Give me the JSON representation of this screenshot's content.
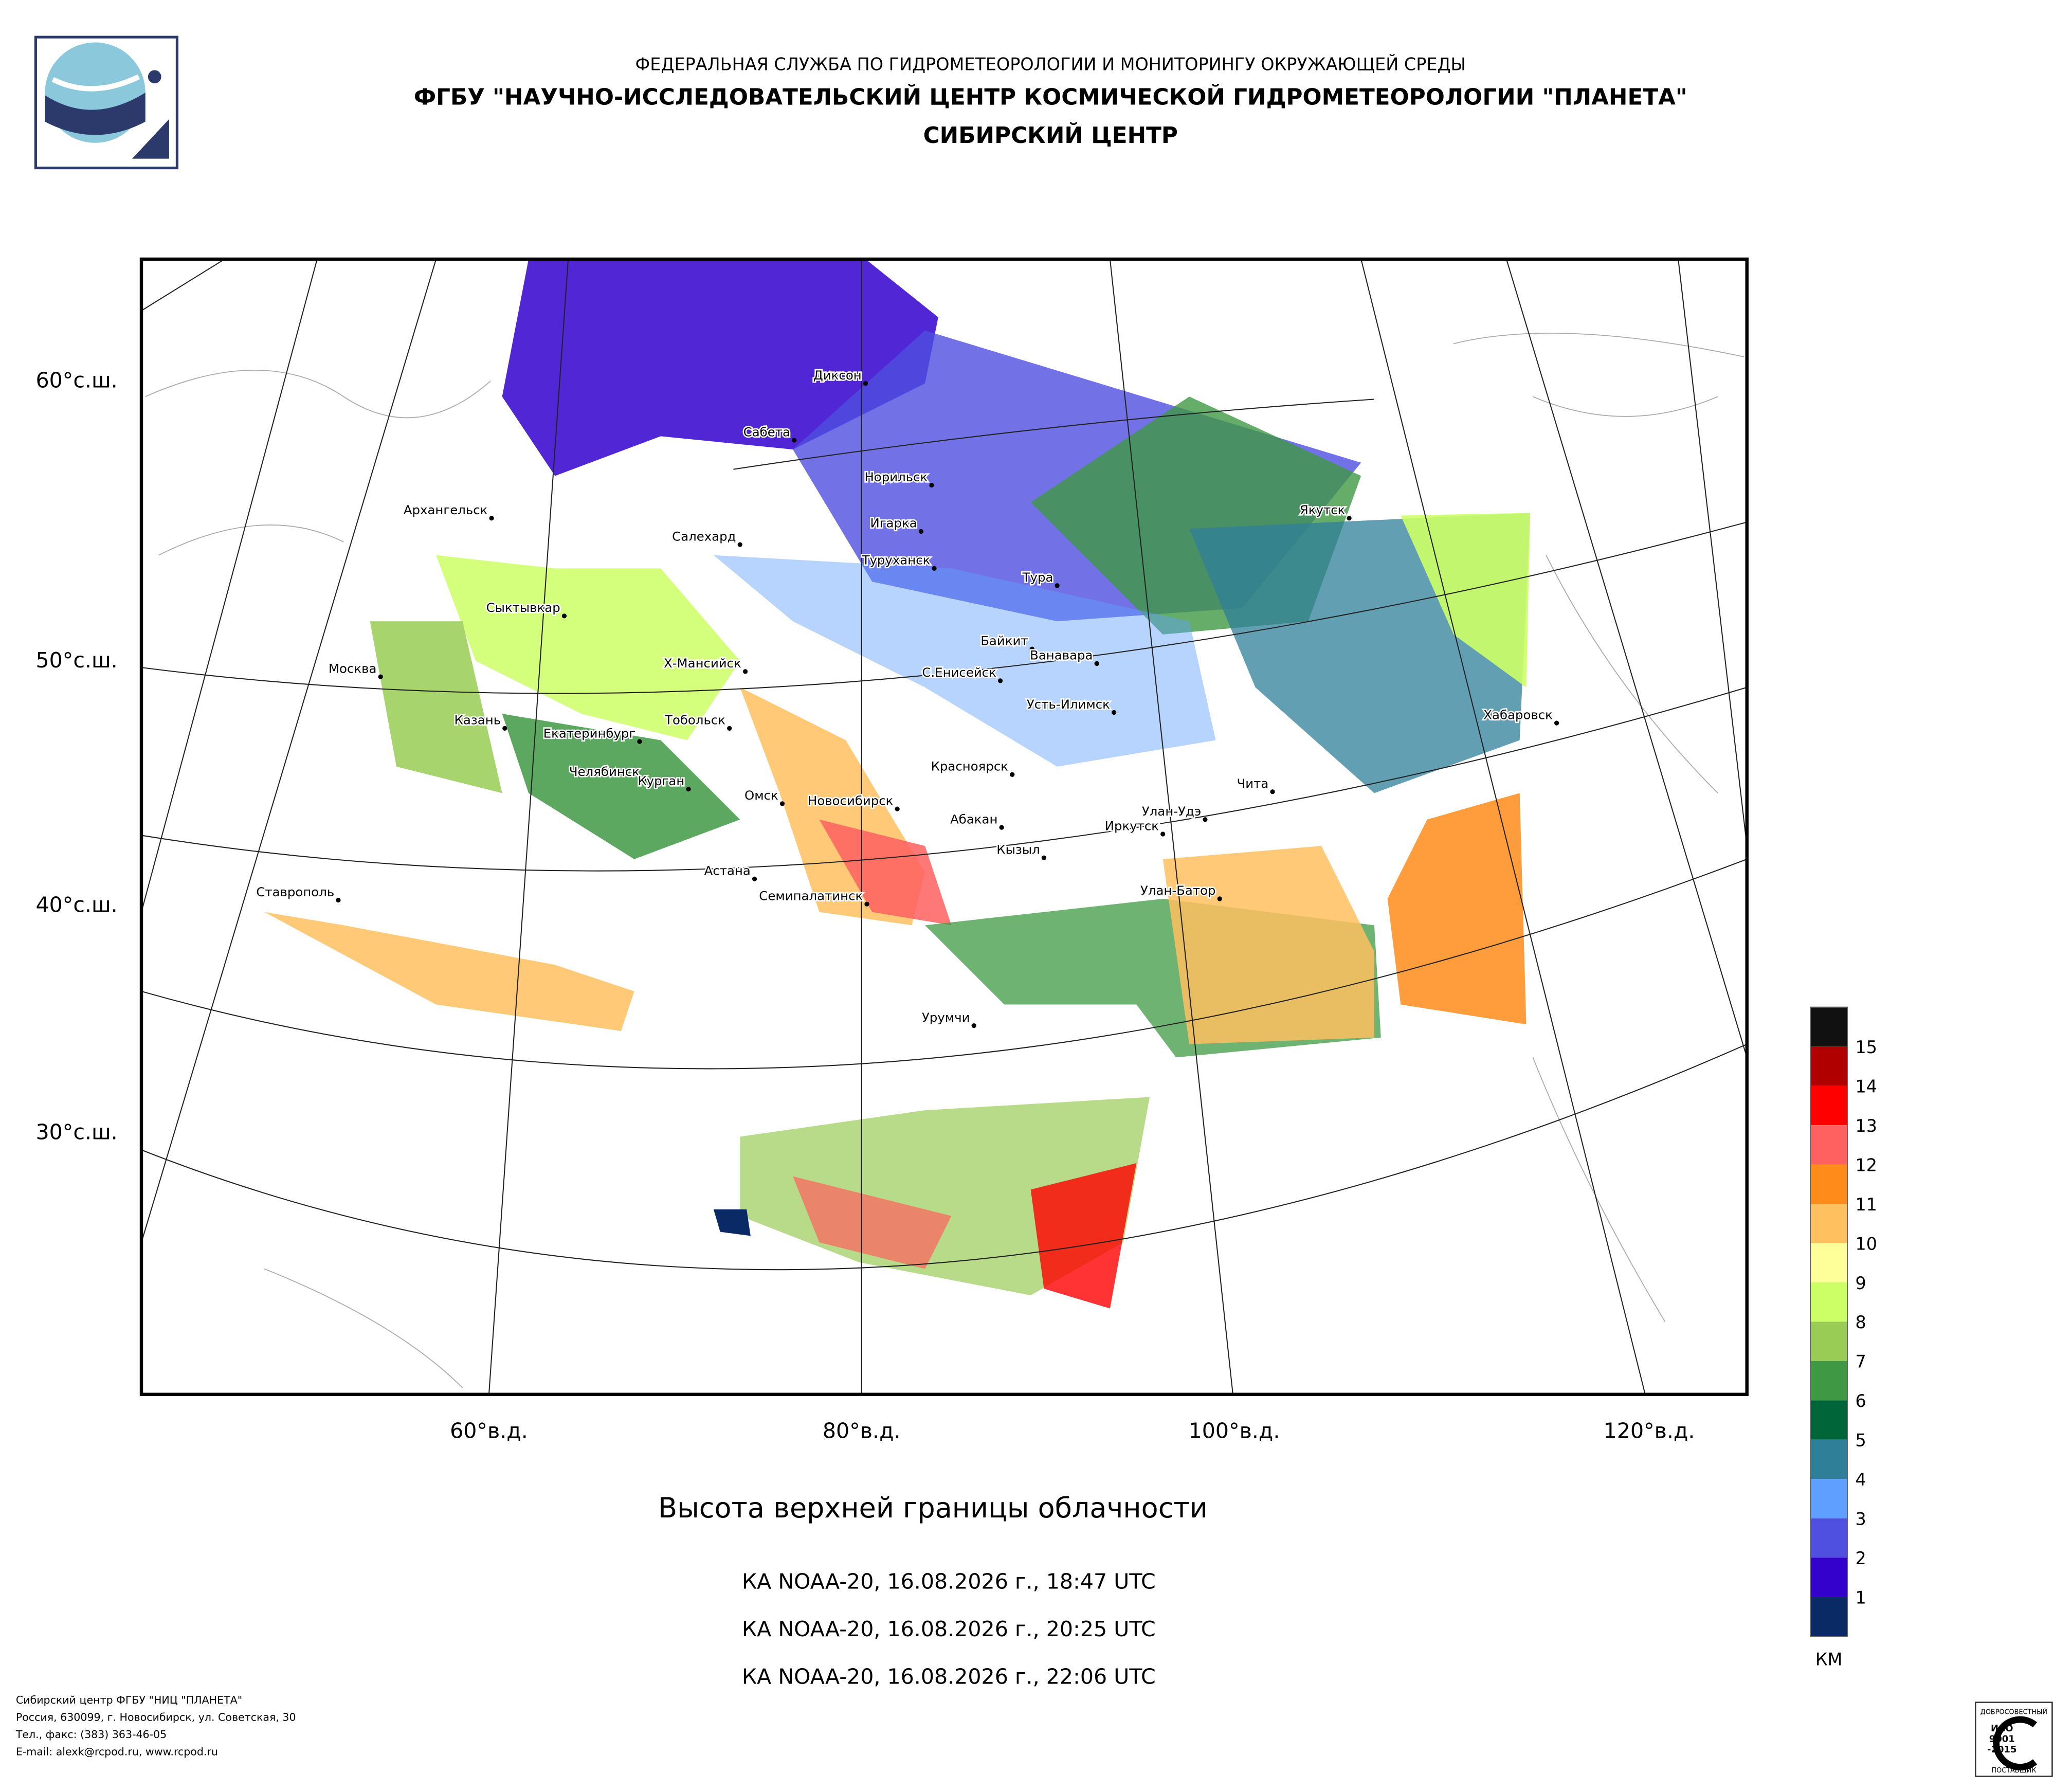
{
  "header": {
    "line1": "ФЕДЕРАЛЬНАЯ СЛУЖБА ПО ГИДРОМЕТЕОРОЛОГИИ И МОНИТОРИНГУ ОКРУЖАЮЩЕЙ СРЕДЫ",
    "line2": "ФГБУ \"НАУЧНО-ИССЛЕДОВАТЕЛЬСКИЙ ЦЕНТР КОСМИЧЕСКОЙ ГИДРОМЕТЕОРОЛОГИИ \"ПЛАНЕТА\"",
    "line3": "СИБИРСКИЙ ЦЕНТР"
  },
  "map": {
    "lat_labels": [
      "60°с.ш.",
      "50°с.ш.",
      "40°с.ш.",
      "30°с.ш."
    ],
    "lon_labels": [
      "60°в.д.",
      "80°в.д.",
      "100°в.д.",
      "120°в.д."
    ],
    "cities": [
      "Диксон",
      "Сабета",
      "Норильск",
      "Игарка",
      "Архангельск",
      "Салехард",
      "Туруханск",
      "Тура",
      "Якутск",
      "Сыктывкар",
      "Байкит",
      "Ванавара",
      "Москва",
      "Х-Мансийск",
      "С.Енисейск",
      "Усть-Илимск",
      "Хабаровск",
      "Казань",
      "Тобольск",
      "Екатеринбург",
      "Красноярск",
      "Чита",
      "Челябинск",
      "Курган",
      "Омск",
      "Новосибирск",
      "Улан-Удэ",
      "Абакан",
      "Иркутск",
      "Кызыл",
      "Астана",
      "Семипалатинск",
      "Улан-Батор",
      "Ставрополь",
      "Урумчи"
    ]
  },
  "legend": {
    "colors": [
      "#111111",
      "#b00000",
      "#ff0000",
      "#ff6060",
      "#ff8c1a",
      "#ffc060",
      "#ffff99",
      "#ccff66",
      "#99cc55",
      "#3f9944",
      "#00663a",
      "#2f7f99",
      "#5f9fff",
      "#4f4fe0",
      "#3300cc",
      "#0a2a66"
    ],
    "labels": [
      15,
      14,
      13,
      12,
      11,
      10,
      9,
      8,
      7,
      6,
      5,
      4,
      3,
      2,
      1
    ],
    "unit": "КМ"
  },
  "title": "Высота верхней границы облачности",
  "passes": [
    "КА NOAA-20, 16.08.2026 г., 18:47 UTC",
    "КА NOAA-20, 16.08.2026 г., 20:25 UTC",
    "КА NOAA-20, 16.08.2026 г., 22:06 UTC"
  ],
  "footer": [
    "Сибирский центр ФГБУ \"НИЦ \"ПЛАНЕТА\"",
    "Россия, 630099, г. Новосибирск, ул. Советская, 30",
    "Тел., факс: (383) 363-46-05",
    "E-mail: alexk@rcpod.ru, www.rcpod.ru"
  ],
  "badge": {
    "top": "ДОБРОСОВЕСТНЫЙ",
    "l1": "ИСО",
    "l2": "9001",
    "l3": "-2015",
    "bottom": "ПОСТАВЩИК"
  }
}
